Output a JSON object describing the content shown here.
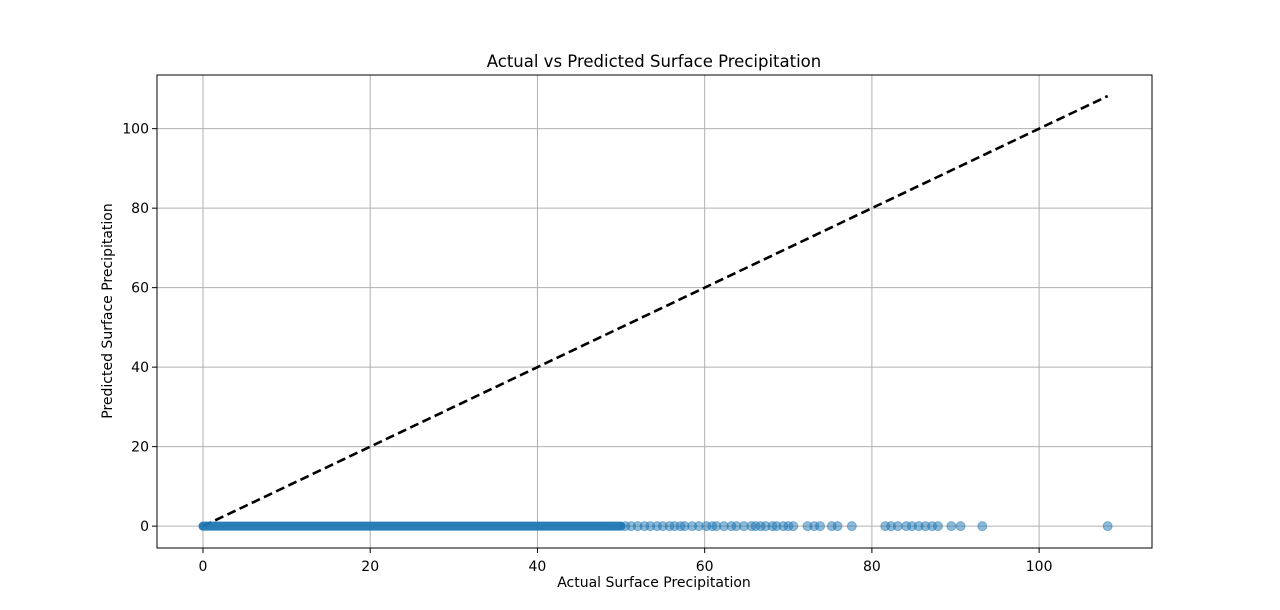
{
  "chart_data": {
    "type": "scatter",
    "title": "Actual vs Predicted Surface Precipitation",
    "xlabel": "Actual Surface Precipitation",
    "ylabel": "Predicted Surface Precipitation",
    "xlim": [
      -5.5,
      113.5
    ],
    "ylim": [
      -5.5,
      113.5
    ],
    "xticks": [
      0,
      20,
      40,
      60,
      80,
      100
    ],
    "yticks": [
      0,
      20,
      40,
      60,
      80,
      100
    ],
    "grid": true,
    "point_color": "#1f77b4",
    "point_alpha": 0.5,
    "reference_line": {
      "style": "dashed",
      "color": "#000000",
      "from": [
        0,
        0
      ],
      "to": [
        108.2,
        108.2
      ]
    },
    "dense_range": {
      "x_from": 0,
      "x_to": 50,
      "y": 0
    },
    "x": [
      50.5,
      51.2,
      52.0,
      52.8,
      53.5,
      54.3,
      55.0,
      55.8,
      56.4,
      57.1,
      57.6,
      58.5,
      59.3,
      60.2,
      60.9,
      61.4,
      62.3,
      63.2,
      63.8,
      64.7,
      65.6,
      66.1,
      66.7,
      67.3,
      68.1,
      68.6,
      69.4,
      70.0,
      70.6,
      72.3,
      73.1,
      73.8,
      75.2,
      75.9,
      77.6,
      81.6,
      82.3,
      83.1,
      84.1,
      84.8,
      85.6,
      86.4,
      87.2,
      87.9,
      89.5,
      90.6,
      93.2,
      108.2
    ],
    "y": [
      0,
      0,
      0,
      0,
      0,
      0,
      0,
      0,
      0,
      0,
      0,
      0,
      0,
      0,
      0,
      0,
      0,
      0,
      0,
      0,
      0,
      0,
      0,
      0,
      0,
      0,
      0,
      0,
      0,
      0,
      0,
      0,
      0,
      0,
      0,
      0,
      0,
      0,
      0,
      0,
      0,
      0,
      0,
      0,
      0,
      0,
      0,
      0
    ]
  }
}
